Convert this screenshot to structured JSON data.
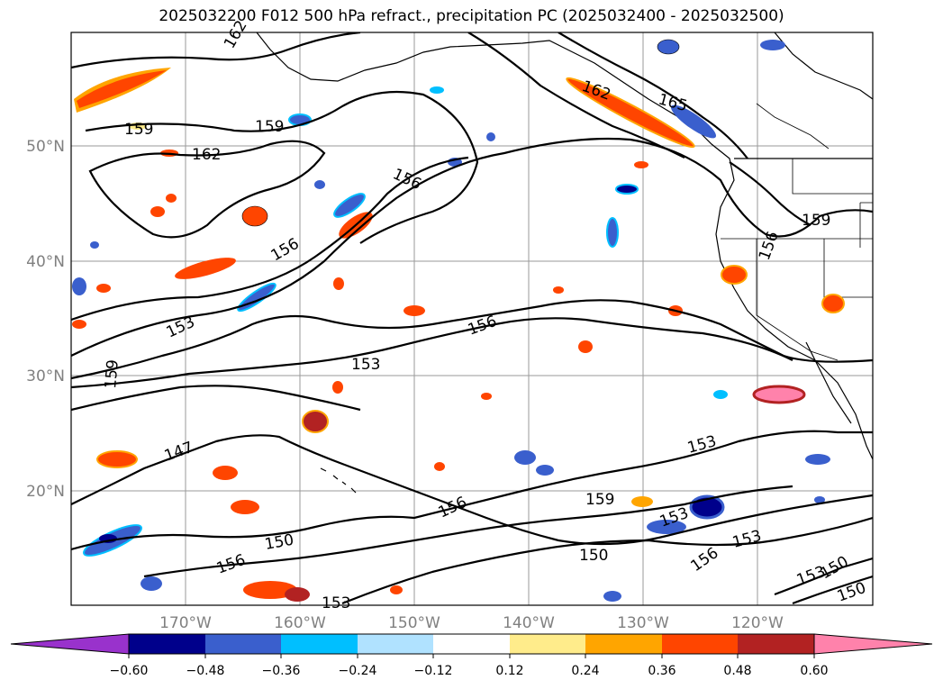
{
  "title": "2025032200 F012 500 hPa refract., precipitation PC (2025032400 - 2025032500)",
  "map": {
    "lat_labels": [
      "50°N",
      "40°N",
      "30°N",
      "20°N"
    ],
    "lon_labels": [
      "170°W",
      "160°W",
      "150°W",
      "140°W",
      "130°W",
      "120°W"
    ],
    "contour_labels": [
      {
        "text": "162"
      },
      {
        "text": "159"
      },
      {
        "text": "159"
      },
      {
        "text": "162"
      },
      {
        "text": "165"
      },
      {
        "text": "162"
      },
      {
        "text": "156"
      },
      {
        "text": "156"
      },
      {
        "text": "159"
      },
      {
        "text": "156"
      },
      {
        "text": "153"
      },
      {
        "text": "156"
      },
      {
        "text": "153"
      },
      {
        "text": "159"
      },
      {
        "text": "147"
      },
      {
        "text": "153"
      },
      {
        "text": "159"
      },
      {
        "text": "156"
      },
      {
        "text": "153"
      },
      {
        "text": "150"
      },
      {
        "text": "156"
      },
      {
        "text": "150"
      },
      {
        "text": "156"
      },
      {
        "text": "153"
      },
      {
        "text": "153"
      },
      {
        "text": "153"
      },
      {
        "text": "150"
      },
      {
        "text": "150"
      }
    ]
  },
  "colorbar": {
    "colors": [
      "#9932cc",
      "#00008b",
      "#3a5fcd",
      "#00bfff",
      "#b0e2ff",
      "#ffffff",
      "#ffec8b",
      "#ffa500",
      "#ff4500",
      "#b22222",
      "#ff82ab"
    ],
    "tick_labels": [
      "−0.60",
      "−0.48",
      "−0.36",
      "−0.24",
      "−0.12",
      "0.12",
      "0.24",
      "0.36",
      "0.48",
      "0.60"
    ]
  }
}
